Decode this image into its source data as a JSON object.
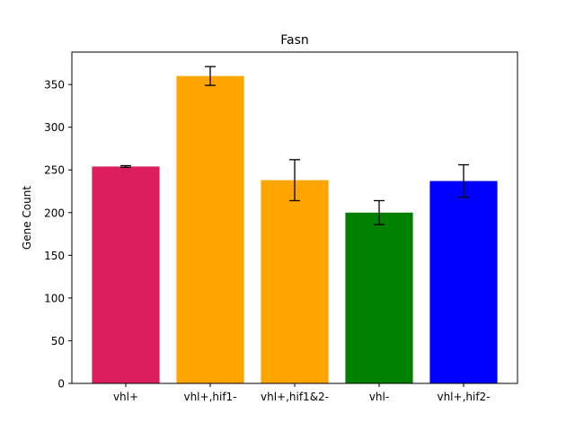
{
  "chart_data": {
    "type": "bar",
    "title": "Fasn",
    "xlabel": "",
    "ylabel": "Gene Count",
    "categories": [
      "vhl+",
      "vhl+,hif1-",
      "vhl+,hif1&2-",
      "vhl-",
      "vhl+,hif2-"
    ],
    "values": [
      254,
      360,
      238,
      200,
      237
    ],
    "errors": [
      1,
      11,
      24,
      14,
      19
    ],
    "colors": [
      "#dc1e5e",
      "#ffa500",
      "#ffa500",
      "#008000",
      "#0000ff"
    ],
    "ylim": [
      0,
      388
    ],
    "yticks": [
      0,
      50,
      100,
      150,
      200,
      250,
      300,
      350
    ],
    "grid": false,
    "legend": "none"
  }
}
